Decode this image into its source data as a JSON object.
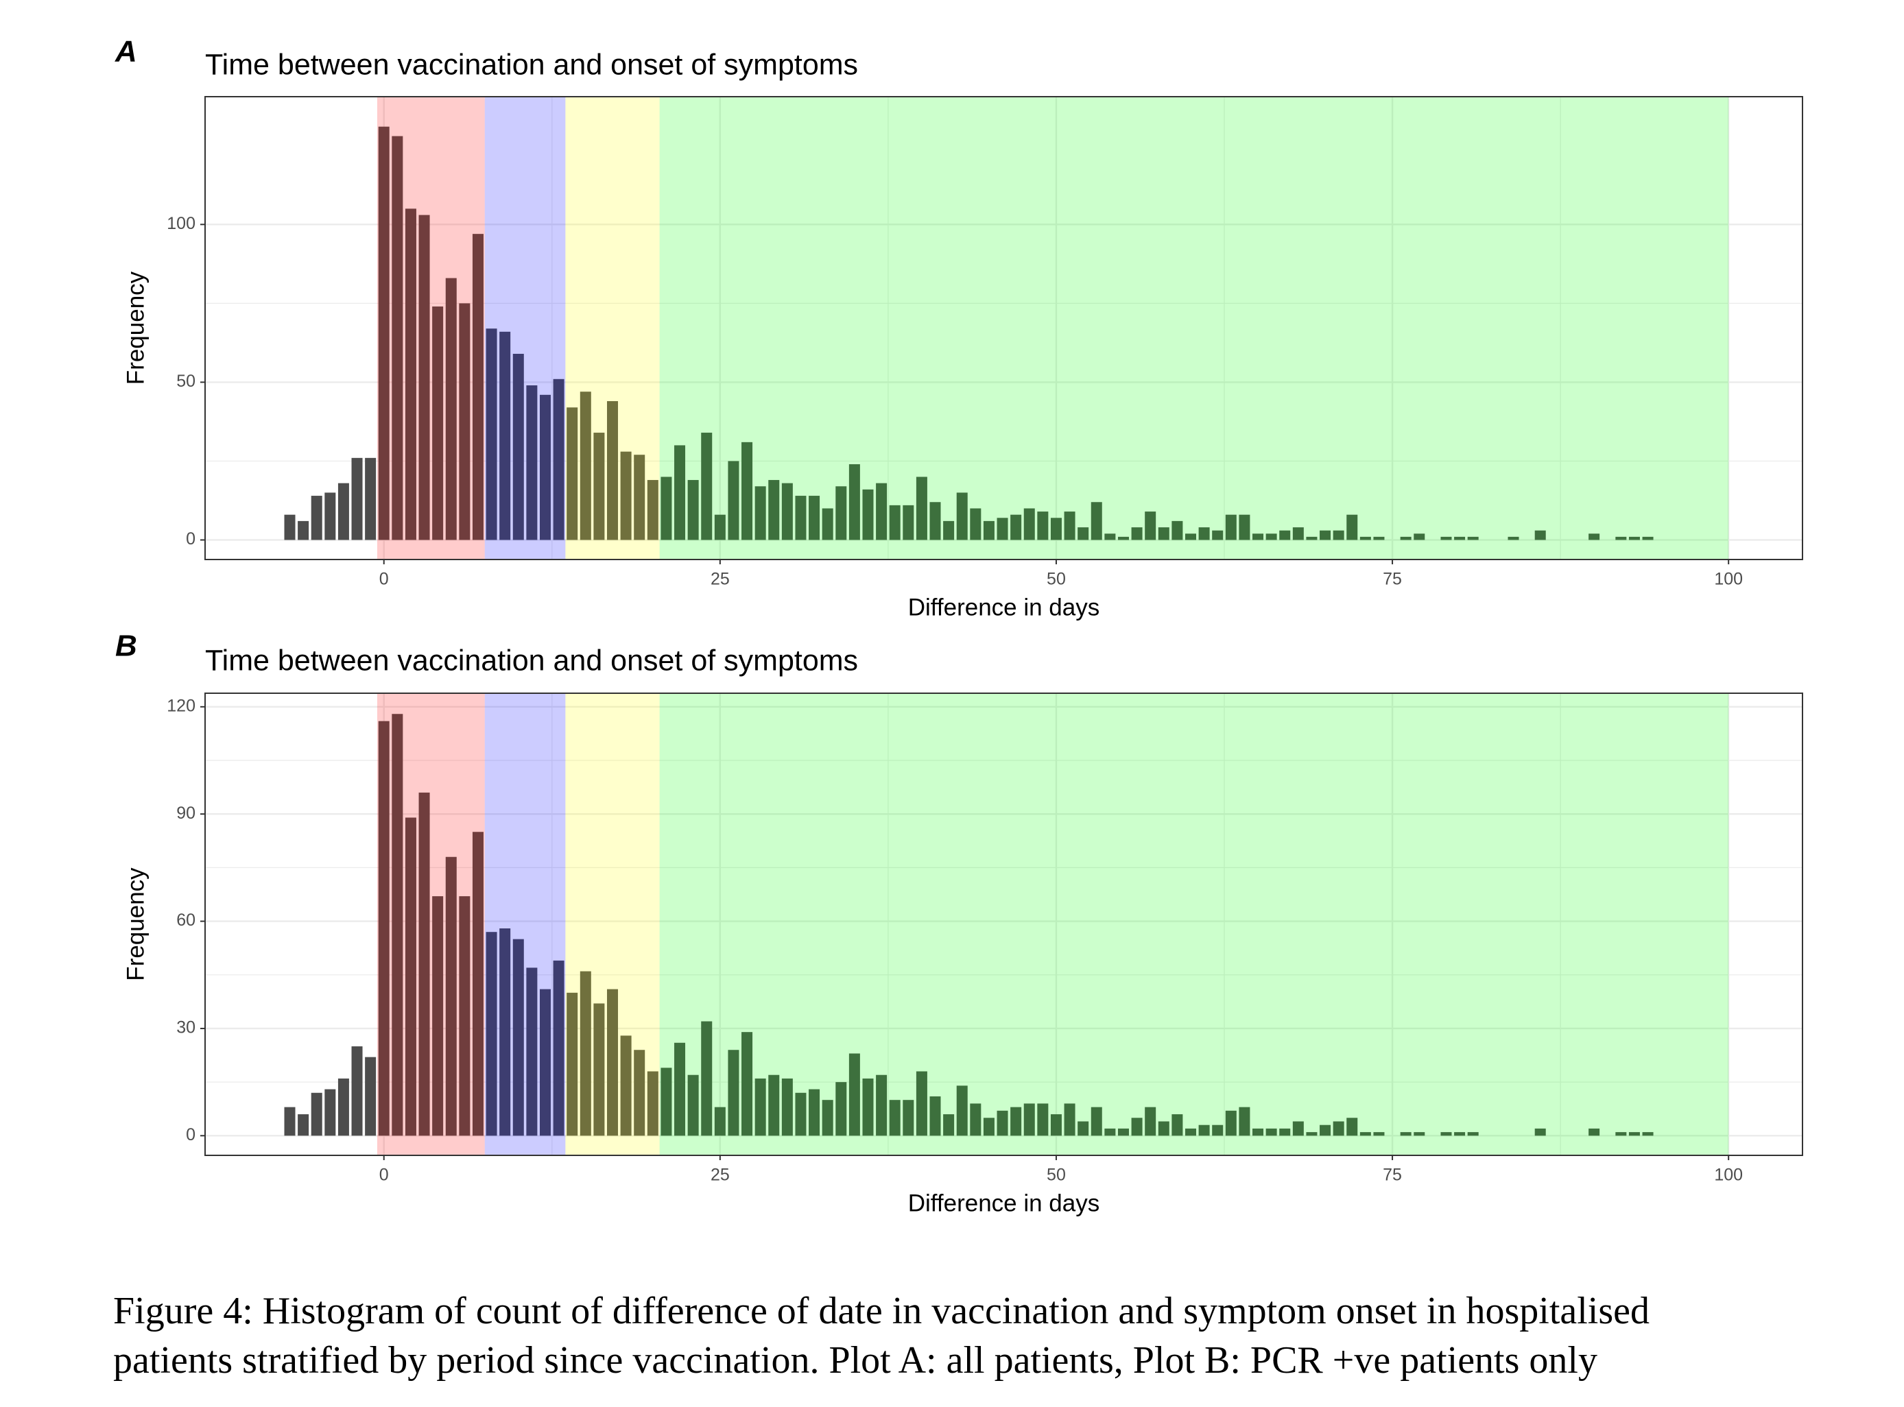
{
  "chart_data": [
    {
      "type": "histogram",
      "panel": "A",
      "title": "Time between vaccination and onset of symptoms",
      "xlabel": "Difference in days",
      "ylabel": "Frequency",
      "bins": [
        -7.5,
        -6.5,
        -5.5,
        -4.5,
        -3.5,
        -2.5,
        -1.5,
        -0.5,
        0.5,
        1.5,
        2.5,
        3.5,
        4.5,
        5.5,
        6.5,
        7.5,
        8.5,
        9.5,
        10.5,
        11.5,
        12.5,
        13.5,
        14.5,
        15.5,
        16.5,
        17.5,
        18.5,
        19.5,
        20.5,
        21.5,
        22.5,
        23.5,
        24.5,
        25.5,
        26.5,
        27.5,
        28.5,
        29.5,
        30.5,
        31.5,
        32.5,
        33.5,
        34.5,
        35.5,
        36.5,
        37.5,
        38.5,
        39.5,
        40.5,
        41.5,
        42.5,
        43.5,
        44.5,
        45.5,
        46.5,
        47.5,
        48.5,
        49.5,
        50.5,
        51.5,
        52.5,
        53.5,
        54.5,
        55.5,
        56.5,
        57.5,
        58.5,
        59.5,
        60.5,
        61.5,
        62.5,
        63.5,
        64.5,
        65.5,
        66.5,
        67.5,
        68.5,
        69.5,
        70.5,
        71.5,
        72.5,
        73.5,
        74.5,
        75.5,
        76.5,
        77.5,
        78.5,
        79.5,
        80.5,
        81.5,
        82.5,
        83.5,
        84.5,
        85.5,
        86.5,
        87.5,
        88.5,
        89.5,
        90.5,
        91.5,
        92.5,
        93.5,
        94.5
      ],
      "values": [
        8,
        6,
        14,
        15,
        18,
        26,
        26,
        131,
        128,
        105,
        103,
        74,
        83,
        75,
        97,
        67,
        66,
        59,
        49,
        46,
        51,
        42,
        47,
        34,
        44,
        28,
        27,
        19,
        20,
        30,
        19,
        34,
        8,
        25,
        31,
        17,
        19,
        18,
        14,
        14,
        10,
        17,
        24,
        16,
        18,
        11,
        11,
        20,
        12,
        6,
        15,
        10,
        6,
        7,
        8,
        10,
        9,
        7,
        9,
        4,
        12,
        2,
        1,
        4,
        9,
        4,
        6,
        2,
        4,
        3,
        8,
        8,
        2,
        2,
        3,
        4,
        1,
        3,
        3,
        8,
        1,
        1,
        0,
        1,
        2,
        0,
        1,
        1,
        1,
        0,
        0,
        1,
        0,
        3,
        0,
        0,
        0,
        2,
        0,
        1,
        1,
        1
      ],
      "color": "#4d4d4d",
      "bands": [
        {
          "xmin": -0.5,
          "xmax": 7.5,
          "color": "#ff0000"
        },
        {
          "xmin": 7.5,
          "xmax": 13.5,
          "color": "#0000ff"
        },
        {
          "xmin": 13.5,
          "xmax": 20.5,
          "color": "#ffff00"
        },
        {
          "xmin": 20.5,
          "xmax": 100,
          "color": "#00ff00"
        }
      ],
      "band_opacity": 0.2,
      "xlim": [
        -13.3,
        105.5
      ],
      "xticks": [
        0,
        25,
        50,
        75,
        100
      ],
      "ylim": [
        -6.2,
        140.5
      ],
      "yticks": [
        0,
        50,
        100
      ],
      "grid": true
    },
    {
      "type": "histogram",
      "panel": "B",
      "title": "Time between vaccination and onset of symptoms",
      "xlabel": "Difference in days",
      "ylabel": "Frequency",
      "bins": [
        -7.5,
        -6.5,
        -5.5,
        -4.5,
        -3.5,
        -2.5,
        -1.5,
        -0.5,
        0.5,
        1.5,
        2.5,
        3.5,
        4.5,
        5.5,
        6.5,
        7.5,
        8.5,
        9.5,
        10.5,
        11.5,
        12.5,
        13.5,
        14.5,
        15.5,
        16.5,
        17.5,
        18.5,
        19.5,
        20.5,
        21.5,
        22.5,
        23.5,
        24.5,
        25.5,
        26.5,
        27.5,
        28.5,
        29.5,
        30.5,
        31.5,
        32.5,
        33.5,
        34.5,
        35.5,
        36.5,
        37.5,
        38.5,
        39.5,
        40.5,
        41.5,
        42.5,
        43.5,
        44.5,
        45.5,
        46.5,
        47.5,
        48.5,
        49.5,
        50.5,
        51.5,
        52.5,
        53.5,
        54.5,
        55.5,
        56.5,
        57.5,
        58.5,
        59.5,
        60.5,
        61.5,
        62.5,
        63.5,
        64.5,
        65.5,
        66.5,
        67.5,
        68.5,
        69.5,
        70.5,
        71.5,
        72.5,
        73.5,
        74.5,
        75.5,
        76.5,
        77.5,
        78.5,
        79.5,
        80.5,
        81.5,
        82.5,
        83.5,
        84.5,
        85.5,
        86.5,
        87.5,
        88.5,
        89.5,
        90.5,
        91.5,
        92.5,
        93.5,
        94.5
      ],
      "values": [
        8,
        6,
        12,
        13,
        16,
        25,
        22,
        116,
        118,
        89,
        96,
        67,
        78,
        67,
        85,
        57,
        58,
        55,
        47,
        41,
        49,
        40,
        46,
        37,
        41,
        28,
        24,
        18,
        19,
        26,
        17,
        32,
        8,
        24,
        29,
        16,
        17,
        16,
        12,
        13,
        10,
        15,
        23,
        16,
        17,
        10,
        10,
        18,
        11,
        6,
        14,
        9,
        5,
        7,
        8,
        9,
        9,
        6,
        9,
        4,
        8,
        2,
        2,
        5,
        8,
        4,
        6,
        2,
        3,
        3,
        7,
        8,
        2,
        2,
        2,
        4,
        1,
        3,
        4,
        5,
        1,
        1,
        0,
        1,
        1,
        0,
        1,
        1,
        1,
        0,
        0,
        0,
        0,
        2,
        0,
        0,
        0,
        2,
        0,
        1,
        1,
        1
      ],
      "color": "#4d4d4d",
      "bands": [
        {
          "xmin": -0.5,
          "xmax": 7.5,
          "color": "#ff0000"
        },
        {
          "xmin": 7.5,
          "xmax": 13.5,
          "color": "#0000ff"
        },
        {
          "xmin": 13.5,
          "xmax": 20.5,
          "color": "#ffff00"
        },
        {
          "xmin": 20.5,
          "xmax": 100,
          "color": "#00ff00"
        }
      ],
      "band_opacity": 0.2,
      "xlim": [
        -13.3,
        105.5
      ],
      "xticks": [
        0,
        25,
        50,
        75,
        100
      ],
      "ylim": [
        -5.5,
        123.8
      ],
      "yticks": [
        0,
        30,
        60,
        90,
        120
      ],
      "grid": true
    }
  ],
  "caption": [
    "Figure 4: Histogram of count of difference of date in vaccination and symptom onset in hospitalised",
    "patients stratified by period since vaccination. Plot A: all patients, Plot B: PCR +ve patients only"
  ]
}
